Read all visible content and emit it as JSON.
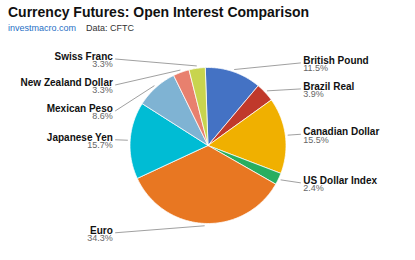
{
  "chart_data": {
    "type": "pie",
    "title": "Currency Futures: Open Interest Comparison",
    "subtitle": [
      "investmacro.com",
      "Data: CFTC"
    ],
    "categories": [
      "British Pound",
      "Brazil Real",
      "Canadian Dollar",
      "US Dollar Index",
      "Euro",
      "Japanese Yen",
      "Mexican Peso",
      "New Zealand Dollar",
      "Swiss Franc"
    ],
    "values": [
      11.5,
      3.9,
      15.5,
      2.4,
      34.3,
      15.7,
      8.6,
      3.3,
      3.3
    ],
    "value_labels": [
      "11.5%",
      "3.9%",
      "15.5%",
      "2.4%",
      "34.3%",
      "15.7%",
      "8.6%",
      "3.3%",
      "3.3%"
    ],
    "colors": [
      "#4472c4",
      "#c0392b",
      "#f0b000",
      "#27ae60",
      "#e87722",
      "#00bcd4",
      "#7fb3d3",
      "#e8806e",
      "#c8d44e"
    ],
    "data_labels": true
  }
}
